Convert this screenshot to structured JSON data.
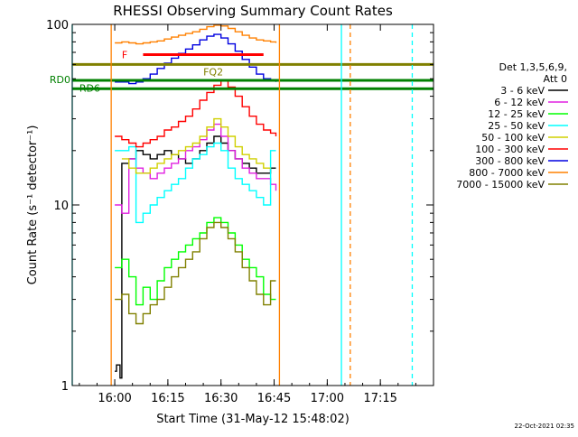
{
  "chart_data": {
    "type": "line",
    "title": "RHESSI Observing Summary Count Rates",
    "xlabel": "Start Time (31-May-12 15:48:02)",
    "ylabel": "Count Rate (s⁻¹ detector⁻¹)",
    "y_scale": "log",
    "ylim": [
      1,
      100
    ],
    "y_ticks": [
      {
        "value": 1,
        "label": "1"
      },
      {
        "value": 10,
        "label": "10"
      },
      {
        "value": 100,
        "label": "100"
      }
    ],
    "x_axis_units": "minutes after 15:48:02",
    "xlim": [
      0,
      102
    ],
    "x_ticks": [
      {
        "value": 12,
        "label": "16:00"
      },
      {
        "value": 27,
        "label": "16:15"
      },
      {
        "value": 42,
        "label": "16:30"
      },
      {
        "value": 57,
        "label": "16:45"
      },
      {
        "value": 72,
        "label": "17:00"
      },
      {
        "value": 87,
        "label": "17:15"
      }
    ],
    "legend_header": [
      "Det 1,3,5,6,9,",
      "Att 0"
    ],
    "series": [
      {
        "name": "3 - 6 keV",
        "color": "#000000",
        "x": [
          12,
          12.5,
          13.5,
          14,
          16,
          18,
          20,
          22,
          24,
          26,
          28,
          30,
          32,
          34,
          36,
          38,
          40,
          42,
          44,
          46,
          48,
          50,
          52,
          54,
          56,
          57.5
        ],
        "y": [
          1.2,
          1.3,
          1.1,
          17,
          18,
          20,
          19,
          18,
          19,
          20,
          19,
          18,
          17,
          18,
          20,
          22,
          24,
          22,
          20,
          18,
          17,
          16,
          15,
          15,
          16,
          16
        ]
      },
      {
        "name": "6 - 12 keV",
        "color": "#e020e0",
        "x": [
          12,
          14,
          16,
          18,
          20,
          22,
          24,
          26,
          28,
          30,
          32,
          34,
          36,
          38,
          40,
          42,
          44,
          46,
          48,
          50,
          52,
          54,
          56,
          57.5
        ],
        "y": [
          10,
          9,
          18,
          16,
          15,
          14,
          15,
          16,
          17,
          18,
          20,
          21,
          23,
          26,
          28,
          24,
          20,
          18,
          16,
          15,
          14,
          14,
          13,
          12
        ]
      },
      {
        "name": "12 - 25 keV",
        "color": "#00ff00",
        "x": [
          12,
          14,
          16,
          18,
          20,
          22,
          24,
          26,
          28,
          30,
          32,
          34,
          36,
          38,
          40,
          42,
          44,
          46,
          48,
          50,
          52,
          54,
          56,
          57.5
        ],
        "y": [
          4.5,
          5,
          4,
          2.8,
          3.5,
          3,
          3.8,
          4.5,
          5,
          5.5,
          6,
          6.5,
          7,
          8,
          8.5,
          8,
          7,
          6,
          5,
          4.5,
          4,
          3.2,
          3,
          3
        ]
      },
      {
        "name": "25 - 50 keV",
        "color": "#00ffff",
        "x": [
          12,
          14,
          16,
          18,
          20,
          22,
          24,
          26,
          28,
          30,
          32,
          34,
          36,
          38,
          40,
          42,
          44,
          46,
          48,
          50,
          52,
          54,
          56,
          57.5
        ],
        "y": [
          20,
          20,
          21,
          8,
          9,
          10,
          11,
          12,
          13,
          14,
          16,
          18,
          19,
          21,
          22,
          20,
          16,
          14,
          13,
          12,
          11,
          10,
          20,
          20
        ]
      },
      {
        "name": "50 - 100 keV",
        "color": "#d0d000",
        "x": [
          14,
          16,
          18,
          20,
          22,
          24,
          26,
          28,
          30,
          32,
          34,
          36,
          38,
          40,
          42,
          44,
          46,
          48,
          50,
          52,
          54,
          56
        ],
        "y": [
          18,
          16,
          15,
          15,
          16,
          17,
          18,
          19,
          20,
          21,
          22,
          24,
          27,
          30,
          27,
          24,
          21,
          19,
          18,
          17,
          16,
          16
        ]
      },
      {
        "name": "100 - 300 keV",
        "color": "#ff0000",
        "x": [
          12,
          14,
          16,
          18,
          20,
          22,
          24,
          26,
          28,
          30,
          32,
          34,
          36,
          38,
          40,
          42,
          44,
          46,
          48,
          50,
          52,
          54,
          56,
          57.5
        ],
        "y": [
          24,
          23,
          22,
          21,
          22,
          23,
          24,
          26,
          27,
          29,
          31,
          34,
          38,
          42,
          46,
          49,
          45,
          40,
          35,
          31,
          28,
          26,
          25,
          24
        ]
      },
      {
        "name": "300 - 800 keV",
        "color": "#0000e0",
        "x": [
          12,
          14,
          16,
          18,
          20,
          22,
          24,
          26,
          28,
          30,
          32,
          34,
          36,
          38,
          40,
          42,
          44,
          46,
          48,
          50,
          52,
          54,
          56,
          57.5
        ],
        "y": [
          48,
          48,
          47,
          48,
          50,
          53,
          57,
          61,
          65,
          69,
          73,
          77,
          82,
          86,
          88,
          84,
          78,
          71,
          64,
          58,
          53,
          50,
          49,
          48
        ]
      },
      {
        "name": "800 - 7000 keV",
        "color": "#ff8000",
        "x": [
          12,
          14,
          16,
          18,
          20,
          22,
          24,
          26,
          28,
          30,
          32,
          34,
          36,
          38,
          40,
          42,
          44,
          46,
          48,
          50,
          52,
          54,
          56,
          57.5
        ],
        "y": [
          79,
          80,
          79,
          78,
          79,
          80,
          81,
          83,
          85,
          87,
          89,
          91,
          94,
          97,
          99,
          98,
          95,
          91,
          87,
          84,
          82,
          81,
          80,
          79
        ]
      },
      {
        "name": "7000 - 15000 keV",
        "color": "#808000",
        "x": [
          12,
          14,
          16,
          18,
          20,
          22,
          24,
          26,
          28,
          30,
          32,
          34,
          36,
          38,
          40,
          42,
          44,
          46,
          48,
          50,
          52,
          54,
          56,
          57.5
        ],
        "y": [
          3,
          3.2,
          2.5,
          2.2,
          2.5,
          2.8,
          3,
          3.5,
          4,
          4.5,
          5,
          5.5,
          6.5,
          7.5,
          8,
          7.5,
          6.5,
          5.5,
          4.5,
          3.8,
          3.2,
          2.8,
          3.8,
          3.8
        ]
      }
    ],
    "flag_bars": [
      {
        "label": "F",
        "color": "#ff0000",
        "y": 68,
        "x": [
          20,
          54
        ]
      },
      {
        "label": "FQ2",
        "color": "#808000",
        "y": 60,
        "x": [
          0,
          102
        ]
      },
      {
        "label": "RD0",
        "color": "#008000",
        "y": 49,
        "x": [
          0,
          102
        ]
      },
      {
        "label": "RD6",
        "color": "#008000",
        "y": 44,
        "x": [
          0,
          102
        ]
      }
    ],
    "vertical_lines": [
      {
        "color": "#00ffff",
        "x": 0,
        "dashed": false
      },
      {
        "color": "#ff8000",
        "x": 11,
        "dashed": false
      },
      {
        "color": "#ff8000",
        "x": 58.5,
        "dashed": false
      },
      {
        "color": "#00ffff",
        "x": 76,
        "dashed": false
      },
      {
        "color": "#ff8000",
        "x": 78.5,
        "dashed": true
      },
      {
        "color": "#00ffff",
        "x": 96,
        "dashed": true
      }
    ]
  },
  "footer": {
    "timestamp": "22-Oct-2021 02:35"
  }
}
